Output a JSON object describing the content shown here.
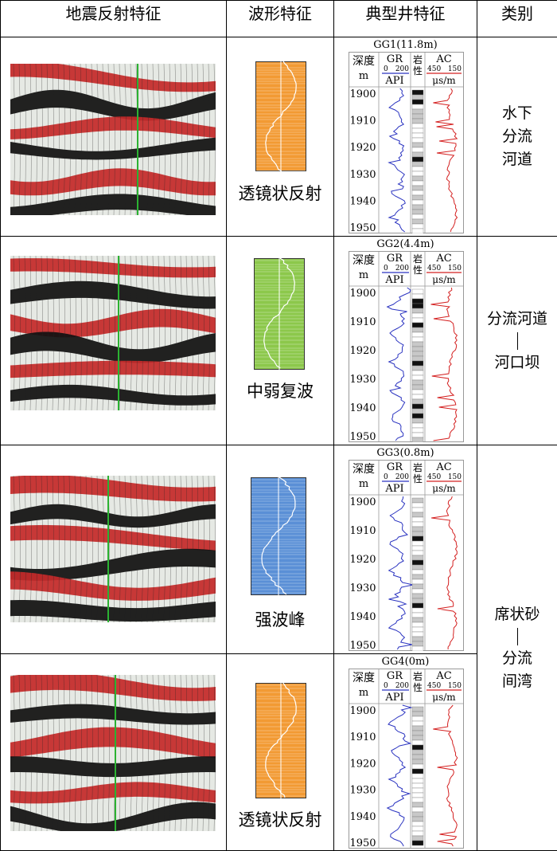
{
  "headers": {
    "seismic": "地震反射特征",
    "waveform": "波形特征",
    "well": "典型井特征",
    "category": "类别"
  },
  "rows": [
    {
      "waveform_label": "透镜状反射",
      "well_title": "GG1(11.8m)",
      "category_lines": [
        "水下",
        "分流",
        "河道"
      ]
    },
    {
      "waveform_label": "中弱复波",
      "well_title": "GG2(4.4m)",
      "category_lines": [
        "分流河道",
        "河口坝"
      ]
    },
    {
      "waveform_label": "强波峰",
      "well_title": "GG3(0.8m)"
    },
    {
      "waveform_label": "透镜状反射",
      "well_title": "GG4(0m)"
    }
  ],
  "merged_category_lines": [
    "席状砂",
    "分流",
    "间湾"
  ],
  "well_log": {
    "depth_label": "深度",
    "depth_unit": "m",
    "gr_label": "GR",
    "gr_scale": [
      "0",
      "200"
    ],
    "gr_unit": "API",
    "lith_label": [
      "岩",
      "性"
    ],
    "ac_label": "AC",
    "ac_scale": [
      "450",
      "150"
    ],
    "ac_unit": "μs/m",
    "depth_ticks": [
      "1900",
      "1910",
      "1920",
      "1930",
      "1940",
      "1950"
    ]
  },
  "colors": {
    "seismic_red": "#c42a2a",
    "seismic_black": "#111111",
    "seismic_white": "#e6e9e4",
    "well_line": "#2bb232",
    "waveform_orange": "#f29a33",
    "waveform_green": "#8cc84b",
    "waveform_blue": "#5a8fd6",
    "gr_curve": "#2a33c0",
    "ac_curve": "#d42020"
  }
}
